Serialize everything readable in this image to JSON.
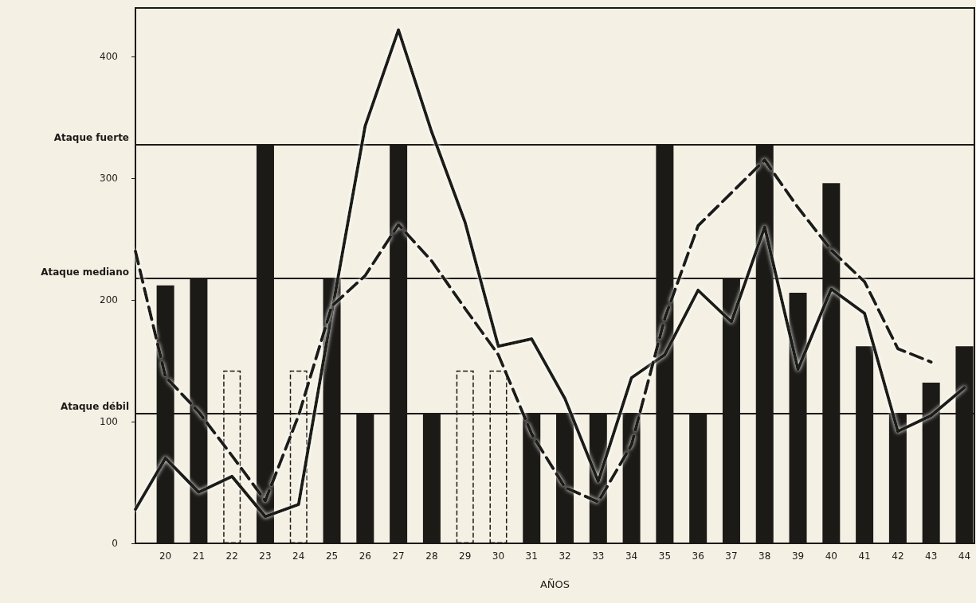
{
  "chart_data": {
    "type": "bar",
    "xlabel": "AÑOS",
    "x": [
      20,
      21,
      22,
      23,
      24,
      25,
      26,
      27,
      28,
      29,
      30,
      31,
      32,
      33,
      34,
      35,
      36,
      37,
      38,
      39,
      40,
      41,
      42,
      43,
      44
    ],
    "xlim": [
      19.1,
      44.3
    ],
    "xticks": [
      20,
      21,
      22,
      23,
      24,
      25,
      26,
      27,
      28,
      29,
      30,
      31,
      32,
      33,
      34,
      35,
      36,
      37,
      38,
      39,
      40,
      41,
      42,
      43,
      44
    ],
    "ylim": [
      0,
      440
    ],
    "yticks": [
      0,
      100,
      200,
      300,
      400
    ],
    "grid": false,
    "marker": "none",
    "series": [
      {
        "color": "#1c1a17",
        "line_style": "solid",
        "values": [
          212,
          218,
          null,
          328,
          null,
          218,
          107,
          328,
          107,
          null,
          null,
          107,
          107,
          107,
          107,
          328,
          107,
          218,
          328,
          206,
          296,
          162,
          107,
          132,
          162
        ]
      },
      {
        "color": "#1c1a17",
        "line_style": "dashed",
        "values": [
          null,
          null,
          142,
          null,
          142,
          null,
          null,
          null,
          null,
          142,
          142,
          null,
          null,
          null,
          null,
          null,
          null,
          null,
          null,
          null,
          null,
          null,
          null,
          null,
          null
        ]
      },
      {
        "type": "line",
        "color": "#1c1a17",
        "line_style": "solid",
        "x": [
          19.1,
          20,
          21,
          22,
          23,
          24,
          25,
          26,
          27,
          28,
          29,
          30,
          31,
          32,
          33,
          34,
          35,
          36,
          37,
          38,
          39,
          40,
          41,
          42,
          43,
          44
        ],
        "values": [
          28,
          70,
          42,
          55,
          22,
          32,
          190,
          343,
          422,
          338,
          264,
          162,
          168,
          119,
          51,
          136,
          155,
          208,
          182,
          260,
          143,
          209,
          189,
          92,
          105,
          128
        ]
      },
      {
        "type": "line",
        "color": "#1c1a17",
        "line_style": "dashed",
        "x": [
          19.1,
          20,
          21,
          22,
          23,
          24,
          25,
          26,
          27,
          28,
          29,
          30,
          31,
          32,
          33,
          34,
          35,
          36,
          37,
          38,
          39,
          40,
          41,
          42,
          43
        ],
        "values": [
          240,
          137,
          108,
          72,
          35,
          105,
          195,
          220,
          262,
          232,
          193,
          155,
          90,
          46,
          34,
          81,
          185,
          261,
          288,
          315,
          276,
          241,
          215,
          160,
          149
        ]
      }
    ],
    "ref_lines": [
      {
        "axis": "y",
        "value": 328,
        "label": "Ataque fuerte"
      },
      {
        "axis": "y",
        "value": 218,
        "label": "Ataque mediano"
      },
      {
        "axis": "y",
        "value": 107,
        "label": "Ataque débil"
      }
    ]
  }
}
